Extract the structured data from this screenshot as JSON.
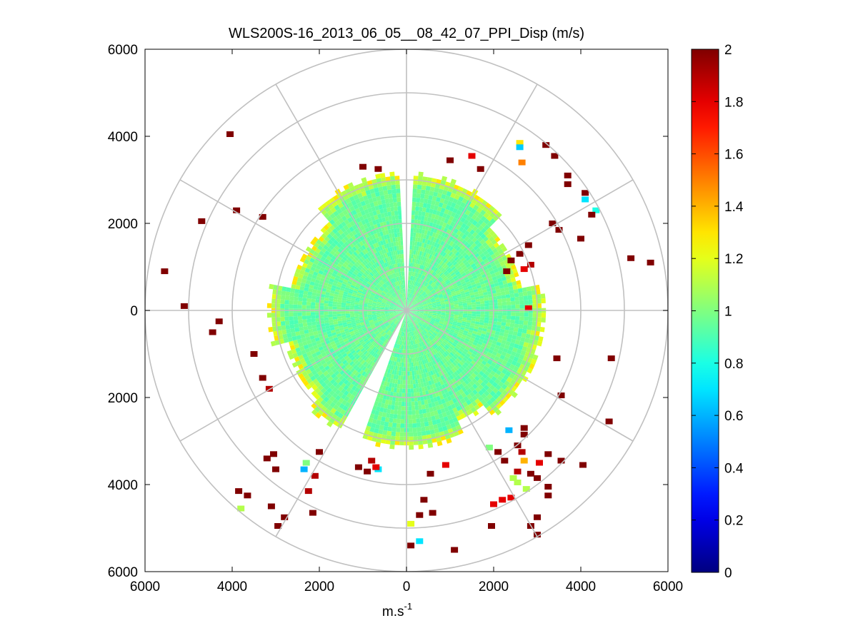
{
  "chart_data": {
    "type": "heatmap",
    "subtype": "polar-ppi",
    "title": "WLS200S-16_2013_06_05__08_42_07_PPI_Disp (m/s)",
    "xlabel": "m.s",
    "xlabel_superscript": "-1",
    "ylabel": "",
    "xlim": [
      -6000,
      6000
    ],
    "ylim": [
      -6000,
      6000
    ],
    "x_tick_values": [
      -6000,
      -4000,
      -2000,
      0,
      2000,
      4000,
      6000
    ],
    "x_tick_labels": [
      "6000",
      "4000",
      "2000",
      "0",
      "2000",
      "4000",
      "6000"
    ],
    "y_tick_values": [
      6000,
      4000,
      2000,
      0,
      -2000,
      -4000,
      -6000
    ],
    "y_tick_labels": [
      "6000",
      "4000",
      "2000",
      "0",
      "2000",
      "4000",
      "6000"
    ],
    "polar_grid": {
      "range_rings": [
        1000,
        2000,
        3000,
        4000,
        5000,
        6000
      ],
      "radial_spokes_deg": [
        0,
        30,
        60,
        90,
        120,
        150,
        180,
        210,
        240,
        270,
        300,
        330
      ]
    },
    "colorbar": {
      "min": 0,
      "max": 2,
      "colormap": "jet",
      "tick_values": [
        0,
        0.2,
        0.4,
        0.6,
        0.8,
        1,
        1.2,
        1.4,
        1.6,
        1.8,
        2
      ],
      "tick_labels": [
        "0",
        "0.2",
        "0.4",
        "0.6",
        "0.8",
        "1",
        "1.2",
        "1.4",
        "1.6",
        "1.8",
        "2"
      ]
    },
    "field": {
      "description": "Dispersion (m/s) per range gate; dense coverage out to ~3000 m, scattered gates beyond",
      "dense_max_range": 3000,
      "typical_value": 0.95,
      "edge_values": [
        1.1,
        1.2,
        1.3
      ],
      "outlier_value": 2.0,
      "gaps_deg": [
        [
          -3,
          3
        ],
        [
          200,
          208
        ]
      ],
      "scattered_points": [
        {
          "x": -4050,
          "y": 4050,
          "v": 2.0
        },
        {
          "x": -4700,
          "y": 2050,
          "v": 2.0
        },
        {
          "x": -3900,
          "y": 2300,
          "v": 2.0
        },
        {
          "x": -3300,
          "y": 2150,
          "v": 2.0
        },
        {
          "x": -5550,
          "y": 900,
          "v": 2.0
        },
        {
          "x": -5100,
          "y": 100,
          "v": 2.0
        },
        {
          "x": -4300,
          "y": -250,
          "v": 2.0
        },
        {
          "x": -4450,
          "y": -500,
          "v": 2.0
        },
        {
          "x": -3500,
          "y": -1000,
          "v": 2.0
        },
        {
          "x": -3300,
          "y": -1550,
          "v": 2.0
        },
        {
          "x": -3150,
          "y": -1800,
          "v": 1.9
        },
        {
          "x": -3050,
          "y": -3300,
          "v": 2.0
        },
        {
          "x": -3000,
          "y": -3650,
          "v": 2.0
        },
        {
          "x": -3200,
          "y": -3400,
          "v": 2.0
        },
        {
          "x": -2300,
          "y": -3500,
          "v": 1.0
        },
        {
          "x": -2350,
          "y": -3650,
          "v": 0.6
        },
        {
          "x": -2000,
          "y": -3250,
          "v": 2.0
        },
        {
          "x": -2100,
          "y": -3800,
          "v": 1.9
        },
        {
          "x": -3850,
          "y": -4150,
          "v": 2.0
        },
        {
          "x": -3650,
          "y": -4250,
          "v": 2.0
        },
        {
          "x": -3800,
          "y": -4550,
          "v": 1.1
        },
        {
          "x": -3100,
          "y": -4500,
          "v": 2.0
        },
        {
          "x": -2800,
          "y": -4750,
          "v": 2.0
        },
        {
          "x": -2950,
          "y": -4950,
          "v": 2.0
        },
        {
          "x": -2150,
          "y": -4650,
          "v": 2.0
        },
        {
          "x": -2250,
          "y": -4150,
          "v": 1.9
        },
        {
          "x": -1000,
          "y": 3300,
          "v": 2.0
        },
        {
          "x": -650,
          "y": 3250,
          "v": 2.0
        },
        {
          "x": 1000,
          "y": 3450,
          "v": 2.0
        },
        {
          "x": 1500,
          "y": 3550,
          "v": 1.8
        },
        {
          "x": 1700,
          "y": 3250,
          "v": 2.0
        },
        {
          "x": 2650,
          "y": 3400,
          "v": 1.5
        },
        {
          "x": 2600,
          "y": 3850,
          "v": 1.3
        },
        {
          "x": 2600,
          "y": 3750,
          "v": 0.65
        },
        {
          "x": 3200,
          "y": 3800,
          "v": 2.0
        },
        {
          "x": 3400,
          "y": 3550,
          "v": 2.0
        },
        {
          "x": 3700,
          "y": 3100,
          "v": 2.0
        },
        {
          "x": 3700,
          "y": 2900,
          "v": 2.0
        },
        {
          "x": 4100,
          "y": 2700,
          "v": 2.0
        },
        {
          "x": 4100,
          "y": 2550,
          "v": 0.7
        },
        {
          "x": 4350,
          "y": 2300,
          "v": 0.8
        },
        {
          "x": 4250,
          "y": 2200,
          "v": 2.0
        },
        {
          "x": 3350,
          "y": 2000,
          "v": 2.0
        },
        {
          "x": 3500,
          "y": 1850,
          "v": 2.0
        },
        {
          "x": 4000,
          "y": 1650,
          "v": 2.0
        },
        {
          "x": 5150,
          "y": 1200,
          "v": 2.0
        },
        {
          "x": 5600,
          "y": 1100,
          "v": 2.0
        },
        {
          "x": 2800,
          "y": 1500,
          "v": 2.0
        },
        {
          "x": 2600,
          "y": 1300,
          "v": 2.0
        },
        {
          "x": 2700,
          "y": 950,
          "v": 1.8
        },
        {
          "x": 2400,
          "y": 1150,
          "v": 2.0
        },
        {
          "x": 2850,
          "y": 1050,
          "v": 1.9
        },
        {
          "x": 2300,
          "y": 900,
          "v": 2.0
        },
        {
          "x": 2800,
          "y": 50,
          "v": 1.8
        },
        {
          "x": 3450,
          "y": -1100,
          "v": 2.0
        },
        {
          "x": 4700,
          "y": -1100,
          "v": 2.0
        },
        {
          "x": 3550,
          "y": -1950,
          "v": 2.0
        },
        {
          "x": 4650,
          "y": -2550,
          "v": 2.0
        },
        {
          "x": 2700,
          "y": -2850,
          "v": 2.0
        },
        {
          "x": 2700,
          "y": -2700,
          "v": 2.0
        },
        {
          "x": 2350,
          "y": -2750,
          "v": 0.6
        },
        {
          "x": 2550,
          "y": -3100,
          "v": 2.0
        },
        {
          "x": 2650,
          "y": -3250,
          "v": 1.9
        },
        {
          "x": 2250,
          "y": -3450,
          "v": 2.0
        },
        {
          "x": 2100,
          "y": -3250,
          "v": 2.0
        },
        {
          "x": 1900,
          "y": -3150,
          "v": 1.0
        },
        {
          "x": 2700,
          "y": -3450,
          "v": 1.4
        },
        {
          "x": 3250,
          "y": -3300,
          "v": 2.0
        },
        {
          "x": 3050,
          "y": -3500,
          "v": 1.8
        },
        {
          "x": 2550,
          "y": -3700,
          "v": 1.9
        },
        {
          "x": 2550,
          "y": -3950,
          "v": 1.1
        },
        {
          "x": 2450,
          "y": -3850,
          "v": 1.1
        },
        {
          "x": 2750,
          "y": -4100,
          "v": 1.1
        },
        {
          "x": 2400,
          "y": -4300,
          "v": 1.8
        },
        {
          "x": 2200,
          "y": -4350,
          "v": 1.8
        },
        {
          "x": 2000,
          "y": -4450,
          "v": 1.8
        },
        {
          "x": 3000,
          "y": -3850,
          "v": 2.0
        },
        {
          "x": 2850,
          "y": -3750,
          "v": 2.0
        },
        {
          "x": 3250,
          "y": -4050,
          "v": 2.0
        },
        {
          "x": 3250,
          "y": -4250,
          "v": 2.0
        },
        {
          "x": 4050,
          "y": -3550,
          "v": 2.0
        },
        {
          "x": 3550,
          "y": -3450,
          "v": 2.0
        },
        {
          "x": 3000,
          "y": -4750,
          "v": 2.0
        },
        {
          "x": 2850,
          "y": -4950,
          "v": 2.0
        },
        {
          "x": 3000,
          "y": -5150,
          "v": 2.0
        },
        {
          "x": 1950,
          "y": -4950,
          "v": 2.0
        },
        {
          "x": 1100,
          "y": -5500,
          "v": 2.0
        },
        {
          "x": 400,
          "y": -4350,
          "v": 2.0
        },
        {
          "x": 600,
          "y": -4650,
          "v": 2.0
        },
        {
          "x": 300,
          "y": -4700,
          "v": 2.0
        },
        {
          "x": 100,
          "y": -4900,
          "v": 1.2
        },
        {
          "x": 300,
          "y": -5300,
          "v": 0.7
        },
        {
          "x": 100,
          "y": -5400,
          "v": 2.0
        },
        {
          "x": -1100,
          "y": -3600,
          "v": 2.0
        },
        {
          "x": -900,
          "y": -3700,
          "v": 2.0
        },
        {
          "x": -800,
          "y": -3450,
          "v": 1.9
        },
        {
          "x": -650,
          "y": -3650,
          "v": 0.7
        },
        {
          "x": -700,
          "y": -3600,
          "v": 1.8
        },
        {
          "x": 550,
          "y": -3750,
          "v": 2.0
        },
        {
          "x": 900,
          "y": -3550,
          "v": 1.8
        }
      ]
    }
  }
}
